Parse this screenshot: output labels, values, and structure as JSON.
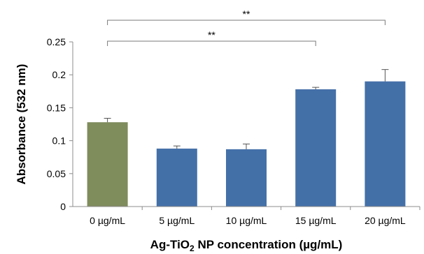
{
  "chart_data": {
    "type": "bar",
    "categories": [
      "0 µg/mL",
      "5 µg/mL",
      "10 µg/mL",
      "15 µg/mL",
      "20 µg/mL"
    ],
    "values": [
      0.128,
      0.088,
      0.087,
      0.178,
      0.19
    ],
    "errors": [
      0.006,
      0.004,
      0.008,
      0.003,
      0.018
    ],
    "bar_colors": [
      "#7f8c5c",
      "#4470a8",
      "#4470a8",
      "#4470a8",
      "#4470a8"
    ],
    "ylim": [
      0,
      0.25
    ],
    "yticks": [
      "0",
      "0.05",
      "0.1",
      "0.15",
      "0.2",
      "0.25"
    ],
    "ylabel": "Absorbance (532 nm)",
    "xlabel": {
      "prefix": "Ag-TiO",
      "subscript": "2",
      "suffix": " NP concentration (µg/mL)"
    },
    "grid": false,
    "legend": "none",
    "significance": [
      {
        "from": 0,
        "to": 4,
        "label": "**"
      },
      {
        "from": 0,
        "to": 3,
        "label": "**"
      }
    ]
  }
}
